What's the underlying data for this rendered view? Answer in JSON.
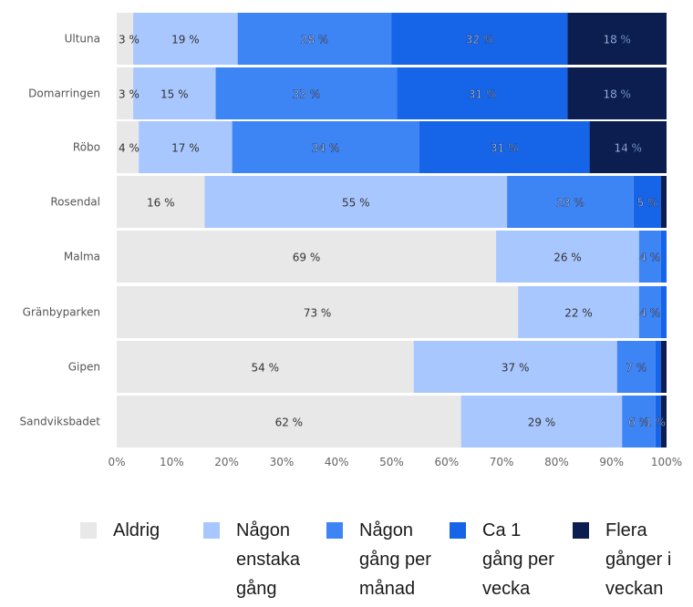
{
  "chart_data": {
    "type": "bar",
    "orientation": "horizontal",
    "stacked": true,
    "categories": [
      "Ultuna",
      "Domarringen",
      "Röbo",
      "Rosendal",
      "Malma",
      "Gränbyparken",
      "Gipen",
      "Sandviksbadet"
    ],
    "series": [
      {
        "name": "Aldrig",
        "color": "#e8e8e8",
        "values": [
          3,
          3,
          4,
          16,
          69,
          73,
          54,
          62
        ],
        "labels": [
          "3 %",
          "3 %",
          "4 %",
          "16 %",
          "69 %",
          "73 %",
          "54 %",
          "62 %"
        ]
      },
      {
        "name": "Någon enstaka gång",
        "color": "#a9c7ff",
        "values": [
          19,
          15,
          17,
          55,
          26,
          22,
          37,
          29
        ],
        "labels": [
          "19 %",
          "15 %",
          "17 %",
          "55 %",
          "26 %",
          "22 %",
          "37 %",
          "29 %"
        ]
      },
      {
        "name": "Någon gång per månad",
        "color": "#3d84f5",
        "values": [
          28,
          33,
          34,
          23,
          4,
          4,
          7,
          6
        ],
        "labels": [
          "28 %",
          "33 %",
          "34 %",
          "23 %",
          "4 %",
          "4 %",
          "7 %",
          "6 %"
        ]
      },
      {
        "name": "Ca 1 gång per vecka",
        "color": "#1664e8",
        "values": [
          32,
          31,
          31,
          5,
          1,
          1,
          1,
          1
        ],
        "labels": [
          "32 %",
          "31 %",
          "31 %",
          "5 %",
          "",
          "",
          "",
          "1 %"
        ]
      },
      {
        "name": "Flera gånger i veckan",
        "color": "#0c1e4f",
        "values": [
          18,
          18,
          14,
          1,
          0,
          0,
          1,
          1
        ],
        "labels": [
          "18 %",
          "18 %",
          "14 %",
          "",
          "",
          "",
          "",
          ""
        ]
      }
    ],
    "xlim": [
      0,
      100
    ],
    "xticks": [
      "0%",
      "10%",
      "20%",
      "30%",
      "40%",
      "50%",
      "60%",
      "70%",
      "80%",
      "90%",
      "100%"
    ],
    "legend_position": "bottom",
    "grid": false,
    "title": "",
    "xlabel": "",
    "ylabel": ""
  },
  "legend": {
    "items": [
      {
        "color": "#e8e8e8",
        "lines": [
          "Aldrig"
        ]
      },
      {
        "color": "#a9c7ff",
        "lines": [
          "Någon",
          "enstaka",
          "gång"
        ]
      },
      {
        "color": "#3d84f5",
        "lines": [
          "Någon",
          "gång per",
          "månad"
        ]
      },
      {
        "color": "#1664e8",
        "lines": [
          "Ca 1",
          "gång per",
          "vecka"
        ]
      },
      {
        "color": "#0c1e4f",
        "lines": [
          "Flera",
          "gånger i",
          "veckan"
        ]
      }
    ]
  }
}
